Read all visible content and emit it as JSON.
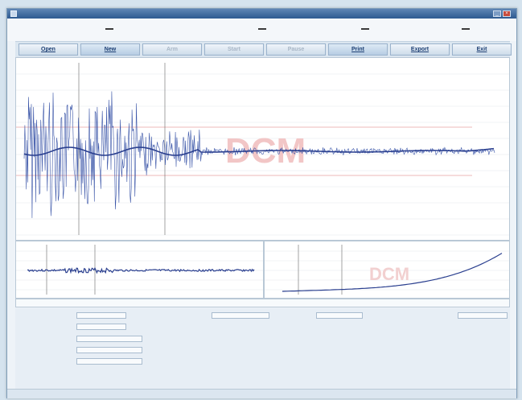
{
  "window": {
    "title": ""
  },
  "toolbar": {
    "buttons": [
      {
        "label": "Open",
        "enabled": true
      },
      {
        "label": "New",
        "enabled": true
      },
      {
        "label": "Arm",
        "enabled": false
      },
      {
        "label": "Start",
        "enabled": false
      },
      {
        "label": "Pause",
        "enabled": false
      },
      {
        "label": "Print",
        "enabled": true
      },
      {
        "label": "Export",
        "enabled": true
      },
      {
        "label": "Exit",
        "enabled": true
      }
    ]
  },
  "main_plot": {
    "title": "",
    "watermark": "DCM"
  },
  "sub_plot_1": {
    "title": ""
  },
  "sub_plot_2": {
    "title": "",
    "watermark": "DCM"
  },
  "record": {
    "label": ""
  },
  "details": {
    "fields": {
      "site": {
        "label": "",
        "value": ""
      },
      "operator": {
        "label": "",
        "value": ""
      },
      "measure_length": {
        "label": "",
        "value": ""
      },
      "measure_type": {
        "label": "",
        "value": ""
      },
      "filter": {
        "label": "",
        "value": ""
      },
      "installation": {
        "label": "",
        "value": ""
      },
      "mode": {
        "label": "",
        "value": ""
      },
      "remark": {
        "label": "",
        "value": ""
      },
      "to": {
        "label": "",
        "value": ""
      }
    },
    "info": {
      "scan_utc": {
        "label": "",
        "value": ""
      },
      "dcm_compensated": {
        "label": "",
        "value": ""
      },
      "coup_cr": {
        "label": "",
        "value": ""
      },
      "cup": {
        "label": "",
        "value": ""
      }
    },
    "stats": {
      "columns": [
        "",
        "",
        ""
      ],
      "rows": [
        {
          "label": "",
          "values": [
            "",
            "",
            ""
          ]
        },
        {
          "label": "",
          "values": [
            "",
            "",
            ""
          ]
        },
        {
          "label": "",
          "values": [
            "",
            "",
            ""
          ]
        }
      ]
    }
  },
  "bottom_tabs": [
    "",
    "",
    ""
  ]
}
